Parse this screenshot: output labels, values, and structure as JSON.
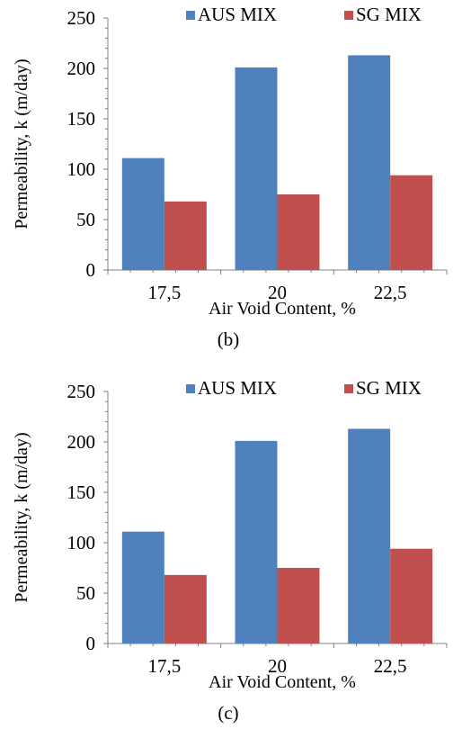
{
  "chart_data": [
    {
      "type": "bar",
      "caption": "(b)",
      "xlabel": "Air Void Content, %",
      "ylabel": "Permeability, k (m/day)",
      "categories": [
        "17,5",
        "20",
        "22,5"
      ],
      "ylim": [
        0,
        250
      ],
      "yticks": [
        0,
        50,
        100,
        150,
        200,
        250
      ],
      "grid": false,
      "legend_position": "top",
      "series": [
        {
          "name": "AUS MIX",
          "color": "#4f81bd",
          "values": [
            111,
            201,
            213
          ]
        },
        {
          "name": "SG MIX",
          "color": "#c0504d",
          "values": [
            68,
            75,
            94
          ]
        }
      ]
    },
    {
      "type": "bar",
      "caption": "(c)",
      "xlabel": "Air Void Content, %",
      "ylabel": "Permeability, k (m/day)",
      "categories": [
        "17,5",
        "20",
        "22,5"
      ],
      "ylim": [
        0,
        250
      ],
      "yticks": [
        0,
        50,
        100,
        150,
        200,
        250
      ],
      "grid": false,
      "legend_position": "top",
      "series": [
        {
          "name": "AUS MIX",
          "color": "#4f81bd",
          "values": [
            111,
            201,
            213
          ]
        },
        {
          "name": "SG MIX",
          "color": "#c0504d",
          "values": [
            68,
            75,
            94
          ]
        }
      ]
    }
  ]
}
